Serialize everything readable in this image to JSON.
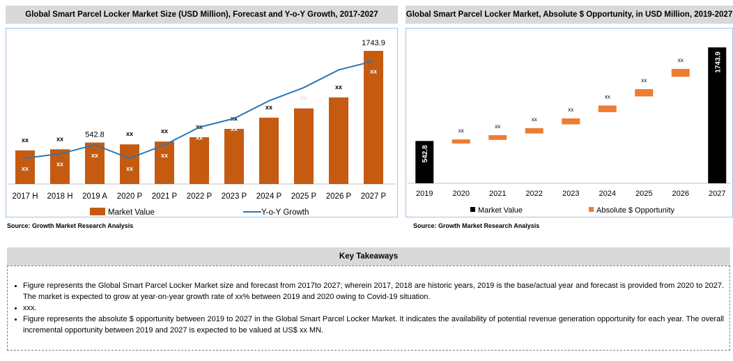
{
  "left_panel": {
    "title": "Global Smart Parcel Locker Market Size (USD Million), Forecast and Y-o-Y Growth, 2017-2027",
    "source": "Source: Growth Market Research Analysis"
  },
  "right_panel": {
    "title": "Global Smart Parcel Locker Market, Absolute $ Opportunity, in USD Million, 2019-2027",
    "source": "Source: Growth Market Research Analysis"
  },
  "key_takeaways": {
    "title": "Key Takeaways",
    "items": [
      "Figure  represents the Global  Smart Parcel Locker Market size and forecast from 2017to 2027; wherein 2017, 2018 are historic years, 2019 is the base/actual year and forecast is provided from 2020 to 2027. The market is expected to grow at year-on-year growth rate of xx% between 2019 and 2020 owing to Covid-19 situation.",
      "xxx.",
      "Figure represents the absolute $ opportunity between 2019 to 2027 in the Global  Smart Parcel Locker Market. It indicates the availability of potential revenue generation opportunity for each year. The overall incremental opportunity between 2019 and 2027 is expected to be valued at US$ xx MN."
    ]
  },
  "colors": {
    "market_bar": "#c55a11",
    "growth_line": "#2e75b6",
    "black_bar": "#000000",
    "opportunity": "#ed7d31"
  },
  "chart_data": [
    {
      "type": "bar",
      "title": "Global Smart Parcel Locker Market Size (USD Million), Forecast and Y-o-Y Growth, 2017-2027",
      "categories": [
        "2017 H",
        "2018 H",
        "2019 A",
        "2020 P",
        "2021 P",
        "2022 P",
        "2023 P",
        "2024 P",
        "2025 P",
        "2026 P",
        "2027 P"
      ],
      "series": [
        {
          "name": "Market Value",
          "type": "bar",
          "values": [
            440,
            454,
            542.8,
            519,
            556,
            612,
            722,
            869,
            990,
            1134,
            1743.9
          ],
          "top_labels": [
            "xx",
            "xx",
            "542.8",
            "xx",
            "xx",
            "xx",
            "xx",
            "xx",
            "xx",
            "xx",
            "1743.9"
          ],
          "inner_labels": [
            "xx",
            "xx",
            "xx",
            "xx",
            "xx",
            "xx",
            "xx",
            "xx",
            "xx",
            "xx",
            "xx"
          ]
        },
        {
          "name": "Y-o-Y Growth",
          "type": "line",
          "values": [
            3,
            4,
            6,
            3,
            6,
            10,
            12,
            16,
            19,
            23,
            25
          ]
        }
      ],
      "legend": [
        "Market Value",
        "Y-o-Y Growth"
      ]
    },
    {
      "type": "bar",
      "title": "Global Smart Parcel Locker Market, Absolute $ Opportunity, in USD Million, 2019-2027",
      "categories": [
        "2019",
        "2020",
        "2021",
        "2022",
        "2023",
        "2024",
        "2025",
        "2026",
        "2027"
      ],
      "series": [
        {
          "name": "Market Value",
          "values": [
            542.8,
            null,
            null,
            null,
            null,
            null,
            null,
            null,
            1743.9
          ]
        },
        {
          "name": "Absolute $ Opportunity",
          "values": [
            null,
            20,
            55,
            90,
            125,
            165,
            210,
            260,
            null
          ]
        }
      ],
      "black_labels": [
        "542.8",
        "",
        "",
        "",
        "",
        "",
        "",
        "",
        "1743.9"
      ],
      "opportunity_labels": [
        "",
        "xx",
        "xx",
        "xx",
        "xx",
        "xx",
        "xx",
        "xx",
        ""
      ],
      "legend": [
        "Market Value",
        "Absolute $ Opportunity"
      ]
    }
  ]
}
